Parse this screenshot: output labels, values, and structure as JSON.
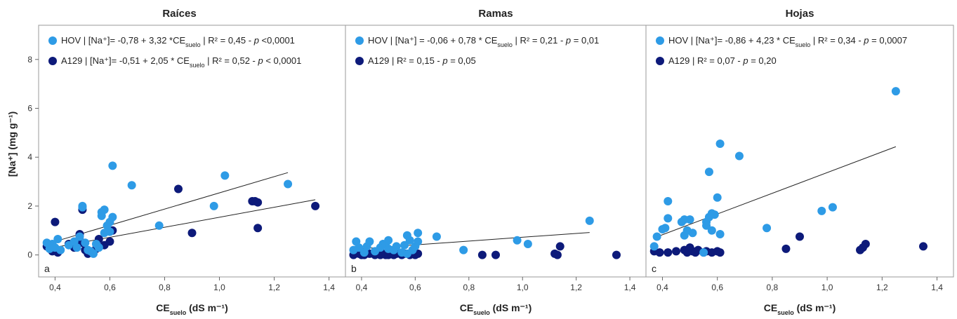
{
  "colors": {
    "hov": "#2e9be6",
    "a129": "#0d1a7a",
    "line": "#222222",
    "frame": "#999999"
  },
  "ylabel": "[Na⁺] (mg g⁻¹)",
  "chart_data": [
    {
      "type": "scatter",
      "title": "Raíces",
      "panel": "a",
      "xlabel": "CEsuelo (dS m⁻¹)",
      "xlim": [
        0.34,
        1.46
      ],
      "ylim": [
        -0.9,
        9.4
      ],
      "xticks": [
        "0,4",
        "0,6",
        "0,8",
        "1,0",
        "1,2",
        "1,4"
      ],
      "yticks": [
        "0",
        "2",
        "4",
        "6",
        "8"
      ],
      "legend": [
        "HOV | [Na⁺]= -0,78 + 3,32 *CEsuelo | R² = 0,45 - p <0,0001",
        "A129 | [Na⁺]= -0,51 + 2,05 * CEsuelo | R² = 0,52 - p < 0,0001"
      ],
      "series": [
        {
          "name": "HOV",
          "trend": [
            [
              0.37,
              0.45
            ],
            [
              1.25,
              3.37
            ]
          ],
          "points": [
            [
              0.37,
              0.5
            ],
            [
              0.38,
              0.25
            ],
            [
              0.39,
              0.45
            ],
            [
              0.4,
              0.3
            ],
            [
              0.41,
              0.65
            ],
            [
              0.42,
              0.2
            ],
            [
              0.45,
              0.4
            ],
            [
              0.47,
              0.55
            ],
            [
              0.48,
              0.3
            ],
            [
              0.49,
              0.75
            ],
            [
              0.5,
              1.95
            ],
            [
              0.5,
              2.0
            ],
            [
              0.51,
              0.5
            ],
            [
              0.52,
              0.2
            ],
            [
              0.53,
              0.15
            ],
            [
              0.54,
              0.05
            ],
            [
              0.55,
              0.45
            ],
            [
              0.56,
              0.3
            ],
            [
              0.57,
              1.6
            ],
            [
              0.57,
              1.75
            ],
            [
              0.58,
              1.85
            ],
            [
              0.58,
              0.9
            ],
            [
              0.59,
              1.2
            ],
            [
              0.6,
              1.35
            ],
            [
              0.6,
              0.95
            ],
            [
              0.61,
              1.55
            ],
            [
              0.61,
              3.65
            ],
            [
              0.68,
              2.85
            ],
            [
              0.78,
              1.2
            ],
            [
              0.98,
              2.0
            ],
            [
              1.02,
              3.25
            ],
            [
              1.25,
              2.9
            ]
          ]
        },
        {
          "name": "A129",
          "trend": [
            [
              0.37,
              0.25
            ],
            [
              1.35,
              2.26
            ]
          ],
          "points": [
            [
              0.37,
              0.35
            ],
            [
              0.39,
              0.15
            ],
            [
              0.4,
              1.35
            ],
            [
              0.41,
              0.1
            ],
            [
              0.45,
              0.45
            ],
            [
              0.47,
              0.3
            ],
            [
              0.48,
              0.55
            ],
            [
              0.49,
              0.85
            ],
            [
              0.5,
              1.85
            ],
            [
              0.5,
              0.5
            ],
            [
              0.51,
              0.2
            ],
            [
              0.52,
              0.05
            ],
            [
              0.53,
              0.1
            ],
            [
              0.55,
              0.25
            ],
            [
              0.56,
              0.65
            ],
            [
              0.58,
              0.4
            ],
            [
              0.6,
              0.55
            ],
            [
              0.61,
              1.0
            ],
            [
              0.85,
              2.7
            ],
            [
              0.9,
              0.9
            ],
            [
              1.12,
              2.2
            ],
            [
              1.13,
              2.2
            ],
            [
              1.14,
              2.15
            ],
            [
              1.14,
              1.1
            ],
            [
              1.35,
              2.0
            ]
          ]
        }
      ]
    },
    {
      "type": "scatter",
      "title": "Ramas",
      "panel": "b",
      "xlabel": "CEsuelo (dS m⁻¹)",
      "xlim": [
        0.34,
        1.46
      ],
      "ylim": [
        -0.9,
        9.4
      ],
      "xticks": [
        "0,4",
        "0,6",
        "0,8",
        "1,0",
        "1,2",
        "1,4"
      ],
      "yticks": [
        "0",
        "2",
        "4",
        "6",
        "8"
      ],
      "legend": [
        "HOV | [Na⁺] = -0,06 + 0,78 * CEsuelo | R² = 0,21 - p = 0,01",
        "A129 | R² = 0,15 - p = 0,05"
      ],
      "series": [
        {
          "name": "HOV",
          "trend": [
            [
              0.37,
              0.23
            ],
            [
              1.25,
              0.92
            ]
          ],
          "points": [
            [
              0.37,
              0.2
            ],
            [
              0.38,
              0.55
            ],
            [
              0.39,
              0.3
            ],
            [
              0.41,
              0.1
            ],
            [
              0.42,
              0.35
            ],
            [
              0.43,
              0.55
            ],
            [
              0.45,
              0.15
            ],
            [
              0.47,
              0.3
            ],
            [
              0.48,
              0.45
            ],
            [
              0.49,
              0.4
            ],
            [
              0.5,
              0.25
            ],
            [
              0.5,
              0.6
            ],
            [
              0.52,
              0.2
            ],
            [
              0.53,
              0.35
            ],
            [
              0.55,
              0.1
            ],
            [
              0.56,
              0.4
            ],
            [
              0.57,
              0.05
            ],
            [
              0.57,
              0.8
            ],
            [
              0.58,
              0.6
            ],
            [
              0.59,
              0.2
            ],
            [
              0.6,
              0.35
            ],
            [
              0.61,
              0.55
            ],
            [
              0.61,
              0.9
            ],
            [
              0.68,
              0.75
            ],
            [
              0.78,
              0.2
            ],
            [
              0.98,
              0.6
            ],
            [
              1.02,
              0.45
            ],
            [
              1.25,
              1.4
            ]
          ]
        },
        {
          "name": "A129",
          "trend": null,
          "points": [
            [
              0.37,
              0.0
            ],
            [
              0.39,
              0.05
            ],
            [
              0.4,
              0.0
            ],
            [
              0.41,
              0.0
            ],
            [
              0.43,
              0.05
            ],
            [
              0.45,
              0.0
            ],
            [
              0.47,
              0.0
            ],
            [
              0.48,
              0.05
            ],
            [
              0.49,
              0.0
            ],
            [
              0.5,
              0.0
            ],
            [
              0.51,
              0.05
            ],
            [
              0.52,
              0.0
            ],
            [
              0.53,
              0.05
            ],
            [
              0.55,
              0.0
            ],
            [
              0.56,
              0.05
            ],
            [
              0.58,
              0.0
            ],
            [
              0.6,
              0.0
            ],
            [
              0.61,
              0.05
            ],
            [
              0.85,
              0.0
            ],
            [
              0.9,
              0.0
            ],
            [
              1.12,
              0.05
            ],
            [
              1.13,
              0.0
            ],
            [
              1.14,
              0.35
            ],
            [
              1.35,
              0.0
            ]
          ]
        }
      ]
    },
    {
      "type": "scatter",
      "title": "Hojas",
      "panel": "c",
      "xlabel": "CEsuelo (dS m⁻¹)",
      "xlim": [
        0.34,
        1.46
      ],
      "ylim": [
        -0.9,
        9.4
      ],
      "xticks": [
        "0,4",
        "0,6",
        "0,8",
        "1,0",
        "1,2",
        "1,4"
      ],
      "yticks": [
        "0",
        "2",
        "4",
        "6",
        "8"
      ],
      "legend": [
        "HOV | [Na⁺]= -0,86 + 4,23 * CEsuelo | R² = 0,34 - p = 0,0007",
        "A129 | R² = 0,07 - p = 0,20"
      ],
      "series": [
        {
          "name": "HOV",
          "trend": [
            [
              0.37,
              0.7
            ],
            [
              1.25,
              4.43
            ]
          ],
          "points": [
            [
              0.37,
              0.35
            ],
            [
              0.38,
              0.75
            ],
            [
              0.4,
              1.05
            ],
            [
              0.41,
              1.1
            ],
            [
              0.42,
              2.2
            ],
            [
              0.42,
              1.5
            ],
            [
              0.47,
              1.35
            ],
            [
              0.48,
              0.8
            ],
            [
              0.48,
              1.45
            ],
            [
              0.49,
              1.0
            ],
            [
              0.5,
              1.45
            ],
            [
              0.51,
              0.9
            ],
            [
              0.55,
              0.1
            ],
            [
              0.56,
              1.35
            ],
            [
              0.56,
              1.2
            ],
            [
              0.57,
              3.4
            ],
            [
              0.57,
              1.55
            ],
            [
              0.58,
              1.7
            ],
            [
              0.58,
              1.0
            ],
            [
              0.59,
              1.65
            ],
            [
              0.6,
              2.35
            ],
            [
              0.61,
              4.55
            ],
            [
              0.61,
              0.85
            ],
            [
              0.68,
              4.05
            ],
            [
              0.78,
              1.1
            ],
            [
              0.98,
              1.8
            ],
            [
              1.02,
              1.95
            ],
            [
              1.25,
              6.7
            ]
          ]
        },
        {
          "name": "A129",
          "trend": null,
          "points": [
            [
              0.37,
              0.15
            ],
            [
              0.39,
              0.1
            ],
            [
              0.42,
              0.1
            ],
            [
              0.45,
              0.15
            ],
            [
              0.48,
              0.2
            ],
            [
              0.49,
              0.1
            ],
            [
              0.5,
              0.3
            ],
            [
              0.51,
              0.15
            ],
            [
              0.52,
              0.1
            ],
            [
              0.53,
              0.2
            ],
            [
              0.55,
              0.1
            ],
            [
              0.56,
              0.15
            ],
            [
              0.58,
              0.1
            ],
            [
              0.6,
              0.15
            ],
            [
              0.61,
              0.1
            ],
            [
              0.85,
              0.25
            ],
            [
              0.9,
              0.75
            ],
            [
              1.12,
              0.2
            ],
            [
              1.13,
              0.3
            ],
            [
              1.14,
              0.45
            ],
            [
              1.35,
              0.35
            ]
          ]
        }
      ]
    }
  ]
}
